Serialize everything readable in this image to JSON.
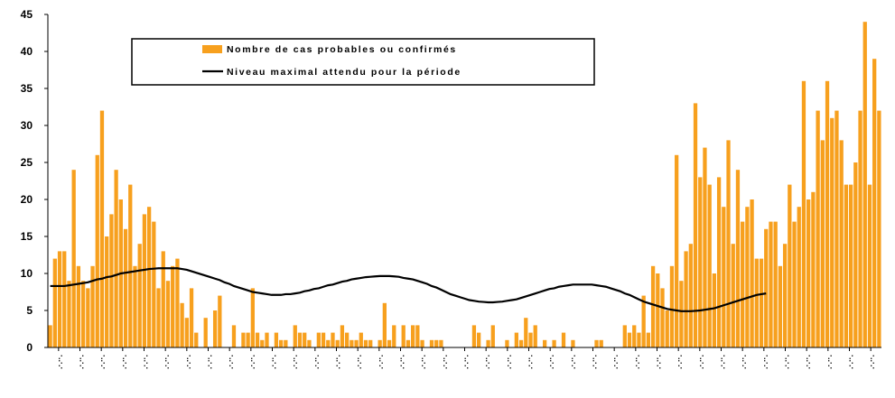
{
  "chart_data": {
    "type": "bar",
    "ylim": [
      0,
      45
    ],
    "yticks": [
      0,
      5,
      10,
      15,
      20,
      25,
      30,
      35,
      40,
      45
    ],
    "grid": false,
    "legend_position": "top-left",
    "series": [
      {
        "name": "Nombre de cas probables ou confirmés",
        "kind": "bar",
        "color": "#F7A01E",
        "values": [
          3,
          12,
          13,
          13,
          9,
          24,
          11,
          9,
          8,
          11,
          26,
          32,
          15,
          18,
          24,
          20,
          16,
          22,
          11,
          14,
          18,
          19,
          17,
          8,
          13,
          9,
          11,
          12,
          6,
          4,
          8,
          2,
          0,
          4,
          0,
          5,
          7,
          0,
          0,
          3,
          0,
          2,
          2,
          8,
          2,
          1,
          2,
          0,
          2,
          1,
          1,
          0,
          3,
          2,
          2,
          1,
          0,
          2,
          2,
          1,
          2,
          1,
          3,
          2,
          1,
          1,
          2,
          1,
          1,
          0,
          1,
          6,
          1,
          3,
          0,
          3,
          1,
          3,
          3,
          1,
          0,
          1,
          1,
          1,
          0,
          0,
          0,
          0,
          0,
          0,
          3,
          2,
          0,
          1,
          3,
          0,
          0,
          1,
          0,
          2,
          1,
          4,
          2,
          3,
          0,
          1,
          0,
          1,
          0,
          2,
          0,
          1,
          0,
          0,
          0,
          0,
          1,
          1,
          0,
          0,
          0,
          0,
          3,
          2,
          3,
          2,
          7,
          2,
          11,
          10,
          8,
          5,
          11,
          26,
          9,
          13,
          14,
          33,
          23,
          27,
          22,
          10,
          23,
          19,
          28,
          14,
          24,
          17,
          19,
          20,
          12,
          12,
          16,
          17,
          17,
          11,
          14,
          22,
          17,
          19,
          36,
          20,
          21,
          32,
          28,
          36,
          31,
          32,
          28,
          22,
          22,
          25,
          32,
          44,
          22,
          39,
          32
        ]
      },
      {
        "name": "Niveau maximal attendu pour la période",
        "kind": "line",
        "color": "#000000",
        "values": [
          8.3,
          8.3,
          8.3,
          8.3,
          8.4,
          8.5,
          8.6,
          8.7,
          8.8,
          9.0,
          9.2,
          9.3,
          9.5,
          9.6,
          9.8,
          10.0,
          10.1,
          10.2,
          10.3,
          10.4,
          10.5,
          10.6,
          10.65,
          10.7,
          10.7,
          10.7,
          10.7,
          10.7,
          10.6,
          10.5,
          10.3,
          10.1,
          9.9,
          9.7,
          9.5,
          9.3,
          9.1,
          8.8,
          8.6,
          8.3,
          8.1,
          7.9,
          7.7,
          7.5,
          7.4,
          7.3,
          7.2,
          7.1,
          7.1,
          7.1,
          7.2,
          7.2,
          7.3,
          7.4,
          7.6,
          7.7,
          7.9,
          8.0,
          8.2,
          8.4,
          8.5,
          8.7,
          8.9,
          9.0,
          9.2,
          9.3,
          9.4,
          9.5,
          9.55,
          9.6,
          9.65,
          9.65,
          9.65,
          9.6,
          9.55,
          9.4,
          9.3,
          9.2,
          9.0,
          8.8,
          8.6,
          8.3,
          8.1,
          7.8,
          7.5,
          7.2,
          7.0,
          6.8,
          6.6,
          6.4,
          6.3,
          6.2,
          6.15,
          6.1,
          6.1,
          6.15,
          6.2,
          6.3,
          6.4,
          6.5,
          6.7,
          6.9,
          7.1,
          7.3,
          7.5,
          7.7,
          7.9,
          8.0,
          8.2,
          8.3,
          8.4,
          8.5,
          8.5,
          8.5,
          8.5,
          8.5,
          8.4,
          8.3,
          8.2,
          8.0,
          7.8,
          7.6,
          7.3,
          7.1,
          6.8,
          6.5,
          6.2,
          6.0,
          5.8,
          5.6,
          5.4,
          5.2,
          5.1,
          5.0,
          4.9,
          4.9,
          4.9,
          4.95,
          5.0,
          5.1,
          5.2,
          5.3,
          5.5,
          5.7,
          5.9,
          6.1,
          6.3,
          6.5,
          6.7,
          6.9,
          7.1,
          7.2,
          7.3
        ]
      }
    ],
    "x_tick_labels": [
      "·..·.·",
      "·..·.·",
      "·..·.·",
      "·..·.·",
      "·..·.·",
      "·..·.·",
      "·..·.·",
      "·..·.·",
      "·..·.·",
      "·..·.·",
      "·..·.·",
      "·..·.·",
      "·..·.·",
      "·..·.·",
      "·..·.·",
      "·..·.·",
      "·..·.·",
      "·..·.·",
      "·..·.·",
      "·..·.·",
      "·..·.·",
      "·..·.·",
      "·..·.·",
      "·..·.·",
      "·..·.·",
      "·..·.·",
      "·..·.·",
      "·..·.·",
      "·..·.·",
      "·..·.·",
      "·..·.·",
      "·..·.·",
      "·..·.·",
      "·..·.·",
      "·..·.·",
      "·..·.·",
      "·..·.·",
      "·..·.·",
      "·..·.·"
    ]
  }
}
